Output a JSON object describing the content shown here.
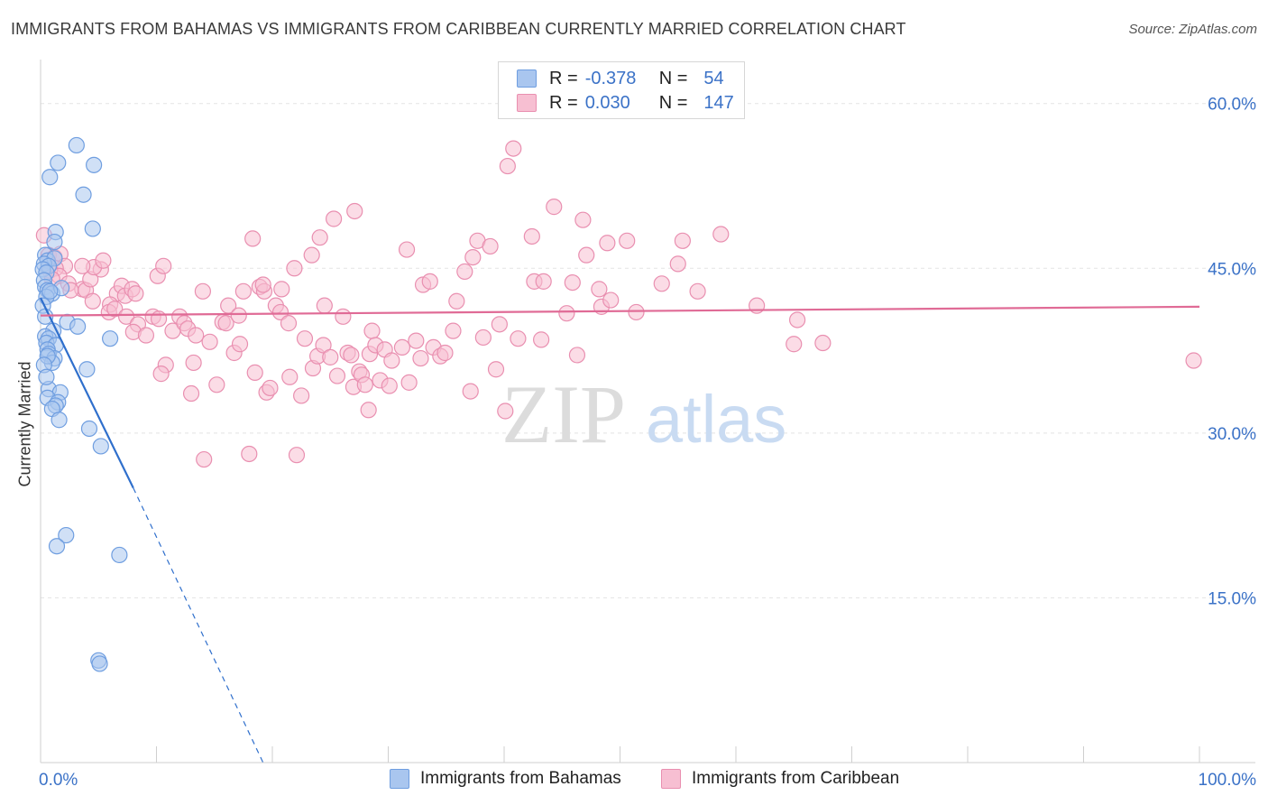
{
  "chart_data": {
    "type": "scatter",
    "title": "IMMIGRANTS FROM BAHAMAS VS IMMIGRANTS FROM CARIBBEAN CURRENTLY MARRIED CORRELATION CHART",
    "source": "Source: ZipAtlas.com",
    "ylabel": "Currently Married",
    "xlabel": "",
    "xlim": [
      0,
      100
    ],
    "ylim": [
      0,
      64
    ],
    "x_tick_labels": [
      "0.0%",
      "100.0%"
    ],
    "y_ticks": [
      15,
      30,
      45,
      60
    ],
    "y_tick_labels": [
      "15.0%",
      "30.0%",
      "45.0%",
      "60.0%"
    ],
    "grid": true,
    "watermark": "ZIPatlas",
    "legend_stats": [
      {
        "r_label": "R =",
        "r_value": "-0.378",
        "n_label": "N =",
        "n_value": "54"
      },
      {
        "r_label": "R =",
        "r_value": "0.030",
        "n_label": "N =",
        "n_value": "147"
      }
    ],
    "series": [
      {
        "name": "Immigrants from Bahamas",
        "color": "#6f9ee0",
        "fill": "#a9c6ef",
        "line_color": "#2f6fcc",
        "trend": {
          "x0": 0,
          "y0": 42.3,
          "x1": 8,
          "y1": 25.0,
          "dash_x1": 19.2,
          "dash_y1": 0
        },
        "points": [
          [
            3.1,
            56.2
          ],
          [
            1.5,
            54.6
          ],
          [
            4.6,
            54.4
          ],
          [
            0.8,
            53.3
          ],
          [
            3.7,
            51.7
          ],
          [
            4.5,
            48.6
          ],
          [
            1.3,
            48.3
          ],
          [
            1.2,
            47.4
          ],
          [
            0.4,
            46.2
          ],
          [
            0.6,
            45.7
          ],
          [
            1.2,
            45.9
          ],
          [
            0.3,
            45.4
          ],
          [
            0.7,
            45.2
          ],
          [
            0.2,
            44.9
          ],
          [
            0.5,
            44.6
          ],
          [
            0.3,
            43.9
          ],
          [
            0.4,
            43.3
          ],
          [
            0.6,
            43.0
          ],
          [
            1.0,
            42.7
          ],
          [
            0.5,
            42.4
          ],
          [
            1.8,
            43.2
          ],
          [
            0.8,
            42.9
          ],
          [
            2.3,
            40.1
          ],
          [
            3.2,
            39.7
          ],
          [
            1.1,
            39.3
          ],
          [
            0.4,
            38.8
          ],
          [
            0.7,
            38.6
          ],
          [
            6.0,
            38.6
          ],
          [
            0.5,
            38.2
          ],
          [
            1.3,
            38.0
          ],
          [
            0.6,
            37.6
          ],
          [
            0.7,
            37.2
          ],
          [
            1.2,
            36.8
          ],
          [
            1.0,
            36.4
          ],
          [
            0.6,
            37.0
          ],
          [
            4.0,
            35.8
          ],
          [
            0.7,
            34.0
          ],
          [
            1.7,
            33.7
          ],
          [
            0.6,
            33.2
          ],
          [
            1.5,
            32.8
          ],
          [
            1.3,
            32.5
          ],
          [
            1.0,
            32.2
          ],
          [
            1.6,
            31.2
          ],
          [
            4.2,
            30.4
          ],
          [
            5.2,
            28.8
          ],
          [
            2.2,
            20.7
          ],
          [
            1.4,
            19.7
          ],
          [
            6.8,
            18.9
          ],
          [
            5.0,
            9.3
          ],
          [
            5.1,
            9.0
          ],
          [
            0.2,
            41.6
          ],
          [
            0.4,
            40.6
          ],
          [
            0.3,
            36.2
          ],
          [
            0.5,
            35.1
          ]
        ]
      },
      {
        "name": "Immigrants from Caribbean",
        "color": "#e98fb0",
        "fill": "#f7bfd2",
        "line_color": "#e06b96",
        "trend": {
          "x0": 0,
          "y0": 40.7,
          "x1": 100,
          "y1": 41.5
        },
        "points": [
          [
            0.3,
            48.0
          ],
          [
            0.7,
            46.2
          ],
          [
            1.2,
            46.0
          ],
          [
            1.7,
            46.3
          ],
          [
            2.1,
            45.2
          ],
          [
            1.3,
            45.0
          ],
          [
            0.8,
            44.8
          ],
          [
            1.6,
            44.3
          ],
          [
            2.4,
            43.6
          ],
          [
            3.6,
            43.1
          ],
          [
            2.6,
            43.0
          ],
          [
            3.9,
            43.0
          ],
          [
            4.3,
            44.0
          ],
          [
            5.2,
            44.9
          ],
          [
            4.6,
            45.1
          ],
          [
            5.4,
            45.7
          ],
          [
            3.6,
            45.2
          ],
          [
            6.6,
            42.7
          ],
          [
            7.0,
            43.4
          ],
          [
            7.3,
            42.5
          ],
          [
            7.9,
            43.1
          ],
          [
            8.2,
            42.7
          ],
          [
            6.0,
            41.7
          ],
          [
            5.9,
            41.0
          ],
          [
            6.4,
            41.3
          ],
          [
            7.4,
            40.6
          ],
          [
            8.4,
            39.9
          ],
          [
            8.0,
            39.2
          ],
          [
            9.1,
            38.9
          ],
          [
            9.7,
            40.6
          ],
          [
            10.2,
            40.4
          ],
          [
            10.1,
            44.3
          ],
          [
            10.6,
            45.2
          ],
          [
            10.8,
            36.2
          ],
          [
            10.4,
            35.4
          ],
          [
            11.4,
            39.3
          ],
          [
            12.0,
            40.6
          ],
          [
            12.4,
            40.0
          ],
          [
            12.7,
            39.5
          ],
          [
            13.2,
            36.4
          ],
          [
            13.0,
            33.6
          ],
          [
            13.4,
            38.9
          ],
          [
            14.0,
            42.9
          ],
          [
            14.1,
            27.6
          ],
          [
            14.6,
            38.3
          ],
          [
            15.2,
            34.4
          ],
          [
            15.7,
            40.1
          ],
          [
            16.0,
            40.0
          ],
          [
            16.2,
            41.6
          ],
          [
            16.7,
            37.3
          ],
          [
            17.2,
            38.1
          ],
          [
            17.1,
            40.7
          ],
          [
            17.5,
            42.9
          ],
          [
            18.0,
            28.1
          ],
          [
            18.5,
            35.5
          ],
          [
            18.3,
            47.7
          ],
          [
            18.9,
            43.3
          ],
          [
            19.3,
            42.9
          ],
          [
            19.2,
            43.5
          ],
          [
            19.5,
            33.7
          ],
          [
            19.8,
            34.1
          ],
          [
            20.3,
            41.6
          ],
          [
            20.7,
            41.0
          ],
          [
            20.8,
            43.1
          ],
          [
            21.4,
            40.0
          ],
          [
            21.5,
            35.1
          ],
          [
            21.9,
            45.0
          ],
          [
            22.1,
            28.0
          ],
          [
            22.5,
            33.4
          ],
          [
            22.8,
            38.6
          ],
          [
            23.5,
            35.9
          ],
          [
            23.4,
            46.2
          ],
          [
            23.9,
            37.0
          ],
          [
            24.1,
            47.8
          ],
          [
            24.4,
            38.0
          ],
          [
            24.5,
            41.6
          ],
          [
            25.0,
            36.9
          ],
          [
            25.3,
            49.5
          ],
          [
            25.6,
            35.2
          ],
          [
            26.1,
            40.6
          ],
          [
            26.5,
            37.3
          ],
          [
            26.8,
            37.1
          ],
          [
            27.0,
            34.2
          ],
          [
            27.1,
            50.2
          ],
          [
            27.5,
            35.6
          ],
          [
            27.7,
            35.3
          ],
          [
            28.0,
            34.4
          ],
          [
            28.3,
            32.1
          ],
          [
            28.4,
            37.2
          ],
          [
            28.6,
            39.3
          ],
          [
            28.9,
            38.0
          ],
          [
            29.3,
            34.8
          ],
          [
            29.7,
            37.6
          ],
          [
            30.1,
            34.3
          ],
          [
            30.3,
            36.6
          ],
          [
            31.2,
            37.8
          ],
          [
            31.6,
            46.7
          ],
          [
            31.8,
            34.6
          ],
          [
            32.4,
            38.4
          ],
          [
            32.8,
            36.8
          ],
          [
            33.0,
            43.5
          ],
          [
            33.6,
            43.8
          ],
          [
            33.9,
            37.8
          ],
          [
            34.5,
            37.0
          ],
          [
            34.9,
            37.3
          ],
          [
            35.6,
            39.3
          ],
          [
            35.9,
            42.0
          ],
          [
            36.6,
            44.7
          ],
          [
            37.1,
            33.8
          ],
          [
            37.3,
            46.0
          ],
          [
            37.7,
            47.5
          ],
          [
            38.2,
            38.7
          ],
          [
            38.8,
            47.0
          ],
          [
            39.3,
            35.8
          ],
          [
            39.6,
            39.9
          ],
          [
            40.1,
            32.0
          ],
          [
            40.3,
            54.3
          ],
          [
            40.8,
            55.9
          ],
          [
            41.2,
            38.6
          ],
          [
            42.4,
            47.9
          ],
          [
            42.6,
            43.8
          ],
          [
            43.2,
            38.5
          ],
          [
            43.4,
            43.8
          ],
          [
            44.3,
            50.6
          ],
          [
            45.4,
            40.9
          ],
          [
            45.9,
            43.7
          ],
          [
            46.3,
            37.1
          ],
          [
            46.8,
            49.4
          ],
          [
            47.1,
            46.2
          ],
          [
            48.2,
            43.1
          ],
          [
            48.4,
            41.5
          ],
          [
            48.9,
            47.3
          ],
          [
            49.2,
            42.1
          ],
          [
            50.6,
            47.5
          ],
          [
            51.4,
            41.0
          ],
          [
            53.6,
            43.6
          ],
          [
            55.0,
            45.4
          ],
          [
            55.4,
            47.5
          ],
          [
            56.7,
            42.9
          ],
          [
            58.7,
            48.1
          ],
          [
            61.8,
            41.6
          ],
          [
            65.0,
            38.1
          ],
          [
            65.3,
            40.3
          ],
          [
            67.5,
            38.2
          ],
          [
            99.5,
            36.6
          ],
          [
            1.0,
            44.0
          ],
          [
            4.5,
            42.0
          ]
        ]
      }
    ]
  }
}
